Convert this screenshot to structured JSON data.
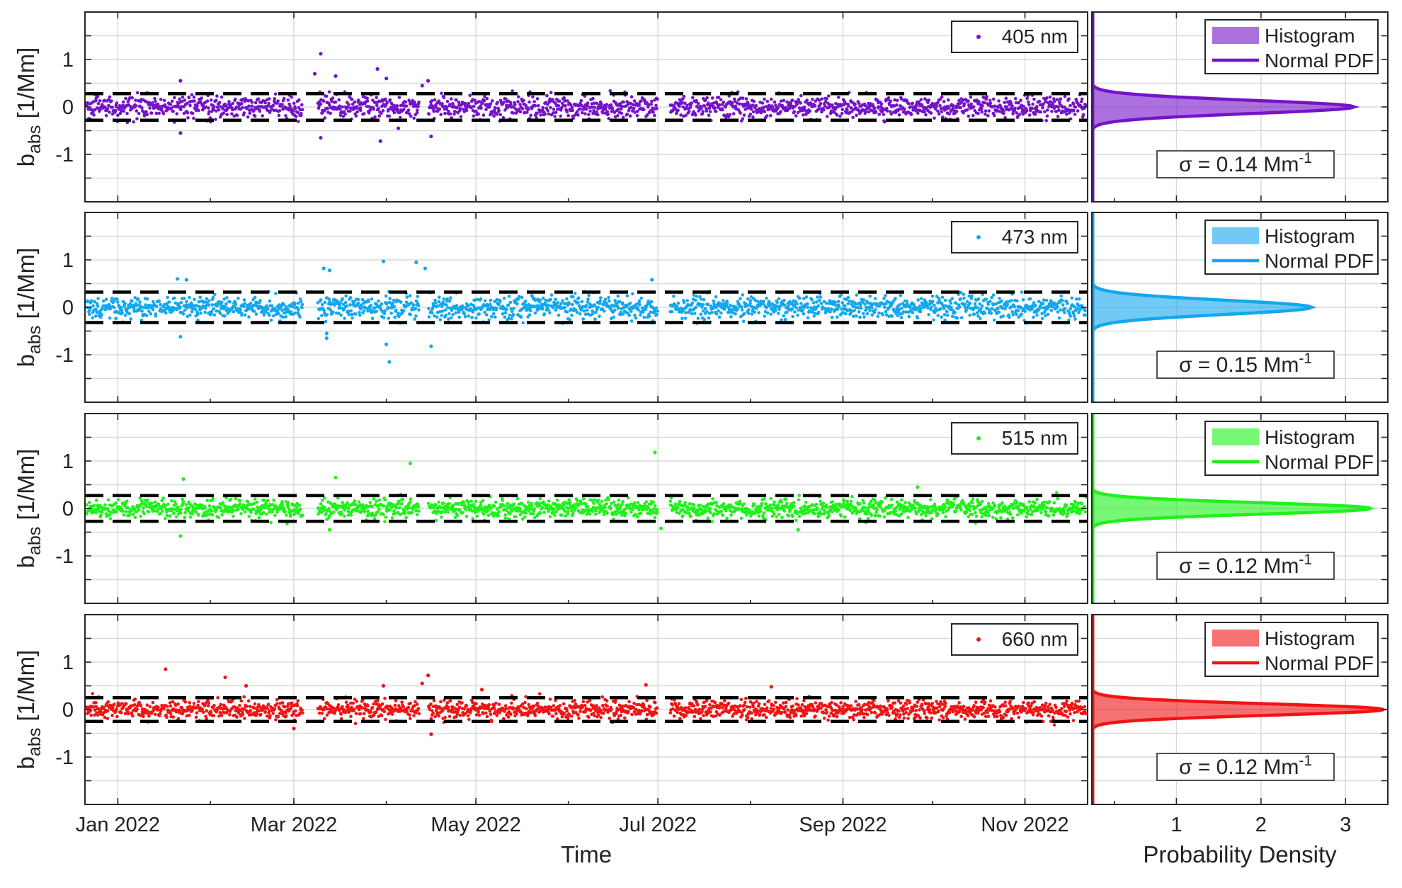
{
  "chart_data": {
    "type": "scatter",
    "layout": "4 rows x 2 columns: time series scatter (left) with horizontal histogram / normal PDF (right)",
    "xlabel_left": "Time",
    "xlabel_right": "Probability Density",
    "ylabel": {
      "main": "b",
      "sub": "abs",
      "unit": " [1/Mm]"
    },
    "ylim": [
      -2,
      2
    ],
    "yticks": [
      -1,
      0,
      1
    ],
    "x_time_range": [
      "2021-12-21",
      "2022-11-22"
    ],
    "x_time_ticks": [
      {
        "date": "2022-01-01",
        "label": "Jan 2022"
      },
      {
        "date": "2022-03-01",
        "label": "Mar 2022"
      },
      {
        "date": "2022-05-01",
        "label": "May 2022"
      },
      {
        "date": "2022-07-01",
        "label": "Jul 2022"
      },
      {
        "date": "2022-09-01",
        "label": "Sep 2022"
      },
      {
        "date": "2022-11-01",
        "label": "Nov 2022"
      }
    ],
    "xlim_density": [
      0,
      3.5
    ],
    "xticks_density": [
      1,
      2,
      3
    ],
    "grid": true,
    "legend_labels": {
      "histogram": "Histogram",
      "pdf": "Normal PDF"
    },
    "panels": [
      {
        "name": "405 nm",
        "color": "#7413c8",
        "sigma": 0.14,
        "sigma_label": {
          "prefix": "σ = 0.14 Mm",
          "sup": "-1"
        },
        "threshold": 0.28,
        "peak_density": 3.1,
        "outliers": [
          {
            "date": "2022-01-22",
            "y": 0.55
          },
          {
            "date": "2022-01-22",
            "y": -0.55
          },
          {
            "date": "2022-03-10",
            "y": 1.12
          },
          {
            "date": "2022-03-10",
            "y": -0.65
          },
          {
            "date": "2022-03-08",
            "y": 0.7
          },
          {
            "date": "2022-03-15",
            "y": 0.65
          },
          {
            "date": "2022-03-29",
            "y": 0.8
          },
          {
            "date": "2022-03-30",
            "y": -0.72
          },
          {
            "date": "2022-04-01",
            "y": 0.6
          },
          {
            "date": "2022-04-05",
            "y": -0.45
          },
          {
            "date": "2022-04-15",
            "y": 0.55
          },
          {
            "date": "2022-04-16",
            "y": -0.62
          },
          {
            "date": "2022-04-13",
            "y": 0.45
          }
        ]
      },
      {
        "name": "473 nm",
        "color": "#13a7ee",
        "sigma": 0.15,
        "sigma_label": {
          "prefix": "σ = 0.15 Mm",
          "sup": "-1"
        },
        "threshold": 0.32,
        "peak_density": 2.6,
        "outliers": [
          {
            "date": "2022-01-21",
            "y": 0.6
          },
          {
            "date": "2022-01-24",
            "y": 0.58
          },
          {
            "date": "2022-01-22",
            "y": -0.62
          },
          {
            "date": "2022-03-11",
            "y": 0.82
          },
          {
            "date": "2022-03-13",
            "y": 0.78
          },
          {
            "date": "2022-03-12",
            "y": -0.55
          },
          {
            "date": "2022-03-12",
            "y": -0.65
          },
          {
            "date": "2022-03-31",
            "y": 0.97
          },
          {
            "date": "2022-04-01",
            "y": -0.78
          },
          {
            "date": "2022-04-02",
            "y": -1.15
          },
          {
            "date": "2022-04-11",
            "y": 0.95
          },
          {
            "date": "2022-04-14",
            "y": 0.82
          },
          {
            "date": "2022-04-16",
            "y": -0.82
          },
          {
            "date": "2022-06-29",
            "y": 0.58
          }
        ]
      },
      {
        "name": "515 nm",
        "color": "#1ef21a",
        "sigma": 0.12,
        "sigma_label": {
          "prefix": "σ = 0.12 Mm",
          "sup": "-1"
        },
        "threshold": 0.27,
        "peak_density": 3.3,
        "outliers": [
          {
            "date": "2022-01-23",
            "y": 0.62
          },
          {
            "date": "2022-01-22",
            "y": -0.58
          },
          {
            "date": "2022-03-15",
            "y": 0.65
          },
          {
            "date": "2022-03-13",
            "y": -0.45
          },
          {
            "date": "2022-04-09",
            "y": 0.95
          },
          {
            "date": "2022-06-30",
            "y": 1.18
          },
          {
            "date": "2022-07-02",
            "y": -0.42
          },
          {
            "date": "2022-08-17",
            "y": -0.45
          },
          {
            "date": "2022-09-26",
            "y": 0.45
          }
        ]
      },
      {
        "name": "660 nm",
        "color": "#f01414",
        "sigma": 0.12,
        "sigma_label": {
          "prefix": "σ = 0.12 Mm",
          "sup": "-1"
        },
        "threshold": 0.25,
        "peak_density": 3.45,
        "outliers": [
          {
            "date": "2022-01-17",
            "y": 0.85
          },
          {
            "date": "2022-02-06",
            "y": 0.68
          },
          {
            "date": "2022-02-13",
            "y": 0.5
          },
          {
            "date": "2022-03-01",
            "y": -0.4
          },
          {
            "date": "2022-03-31",
            "y": 0.5
          },
          {
            "date": "2022-04-13",
            "y": 0.55
          },
          {
            "date": "2022-04-15",
            "y": 0.72
          },
          {
            "date": "2022-04-16",
            "y": -0.52
          },
          {
            "date": "2022-05-03",
            "y": 0.42
          },
          {
            "date": "2022-06-27",
            "y": 0.52
          },
          {
            "date": "2022-08-08",
            "y": 0.48
          }
        ]
      }
    ]
  }
}
